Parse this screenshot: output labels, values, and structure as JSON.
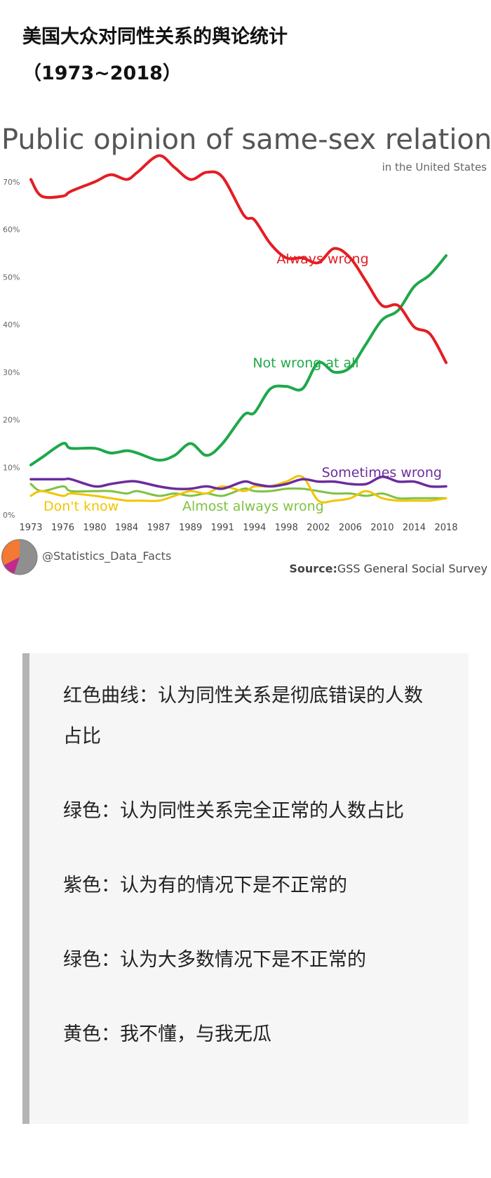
{
  "article": {
    "title": "美国大众对同性关系的舆论统计",
    "subtitle": "（1973~2018）"
  },
  "chart_data": {
    "type": "line",
    "title": "Public opinion of same-sex relations",
    "subtitle": "in the United States",
    "x_tick_labels": [
      "1973",
      "1976",
      "1980",
      "1984",
      "1987",
      "1989",
      "1991",
      "1994",
      "1998",
      "2002",
      "2006",
      "2010",
      "2014",
      "2018"
    ],
    "y_tick_labels": [
      "0%",
      "10%",
      "20%",
      "30%",
      "40%",
      "50%",
      "60%",
      "70%"
    ],
    "ylim": [
      0,
      75
    ],
    "grid": false,
    "series": [
      {
        "name": "Always wrong",
        "color": "#e31e24",
        "x": [
          1973,
          1974,
          1976,
          1977,
          1980,
          1982,
          1984,
          1985,
          1987,
          1988,
          1989,
          1990,
          1991,
          1993,
          1994,
          1996,
          1998,
          2000,
          2002,
          2004,
          2006,
          2008,
          2010,
          2012,
          2014,
          2016,
          2018
        ],
        "y": [
          70.5,
          67,
          67,
          68,
          70,
          71.5,
          70.5,
          72,
          75.5,
          73,
          70.5,
          72,
          71,
          63,
          62,
          57,
          54,
          54,
          53,
          56,
          54,
          49,
          44,
          44,
          39.5,
          38,
          32
        ]
      },
      {
        "name": "Not wrong at all",
        "color": "#1fa84a",
        "x": [
          1973,
          1974,
          1976,
          1977,
          1980,
          1982,
          1984,
          1985,
          1987,
          1988,
          1989,
          1990,
          1991,
          1993,
          1994,
          1996,
          1998,
          2000,
          2002,
          2004,
          2006,
          2008,
          2010,
          2012,
          2014,
          2016,
          2018
        ],
        "y": [
          10.5,
          12,
          15,
          14,
          14,
          13,
          13.5,
          13,
          11.5,
          12.5,
          15,
          12.5,
          15,
          21,
          21.5,
          26.5,
          27,
          26.5,
          32,
          30,
          31,
          36,
          41,
          43,
          48,
          50.5,
          54.5
        ]
      },
      {
        "name": "Sometimes wrong",
        "color": "#6b2d9b",
        "x": [
          1973,
          1976,
          1977,
          1980,
          1982,
          1984,
          1985,
          1987,
          1988,
          1989,
          1990,
          1991,
          1993,
          1994,
          1996,
          1998,
          2000,
          2002,
          2004,
          2006,
          2008,
          2010,
          2012,
          2014,
          2016,
          2018
        ],
        "y": [
          7.5,
          7.5,
          7.5,
          6,
          6.5,
          7,
          7,
          6,
          5.5,
          5.5,
          6,
          5.5,
          7,
          6.5,
          6,
          6.5,
          7.5,
          7,
          7,
          6.5,
          6.5,
          8,
          7,
          7,
          6,
          6
        ]
      },
      {
        "name": "Almost always wrong",
        "color": "#7fc241",
        "x": [
          1973,
          1974,
          1976,
          1977,
          1980,
          1982,
          1984,
          1985,
          1987,
          1988,
          1989,
          1990,
          1991,
          1993,
          1994,
          1996,
          1998,
          2000,
          2002,
          2004,
          2006,
          2008,
          2010,
          2012,
          2014,
          2016,
          2018
        ],
        "y": [
          6.5,
          5,
          6,
          5,
          5,
          5,
          4.5,
          5,
          4,
          4.5,
          4,
          4.5,
          4,
          5.5,
          5,
          5,
          5.5,
          5.5,
          5,
          4.5,
          4.5,
          4,
          4.5,
          3.5,
          3.5,
          3.5,
          3.5
        ]
      },
      {
        "name": "Don't know",
        "color": "#f2c500",
        "x": [
          1973,
          1974,
          1976,
          1977,
          1980,
          1982,
          1984,
          1985,
          1987,
          1988,
          1989,
          1990,
          1991,
          1993,
          1994,
          1996,
          1998,
          2000,
          2002,
          2004,
          2006,
          2008,
          2010,
          2012,
          2014,
          2016,
          2018
        ],
        "y": [
          4,
          5,
          4,
          4.5,
          4,
          3.5,
          3,
          3,
          3,
          4,
          5,
          4.5,
          6,
          5,
          6,
          6,
          7,
          8,
          3,
          3,
          3.5,
          5,
          3.5,
          3,
          3,
          3,
          3.5
        ]
      }
    ],
    "credit": "@Statistics_Data_Facts",
    "source_label": "Source:",
    "source_text": "GSS General Social Survey"
  },
  "legend_notes": {
    "paragraphs": [
      "红色曲线：认为同性关系是彻底错误的人数占比",
      "绿色：认为同性关系完全正常的人数占比",
      "紫色：认为有的情况下是不正常的",
      "绿色：认为大多数情况下是不正常的",
      "黄色：我不懂，与我无瓜"
    ]
  }
}
